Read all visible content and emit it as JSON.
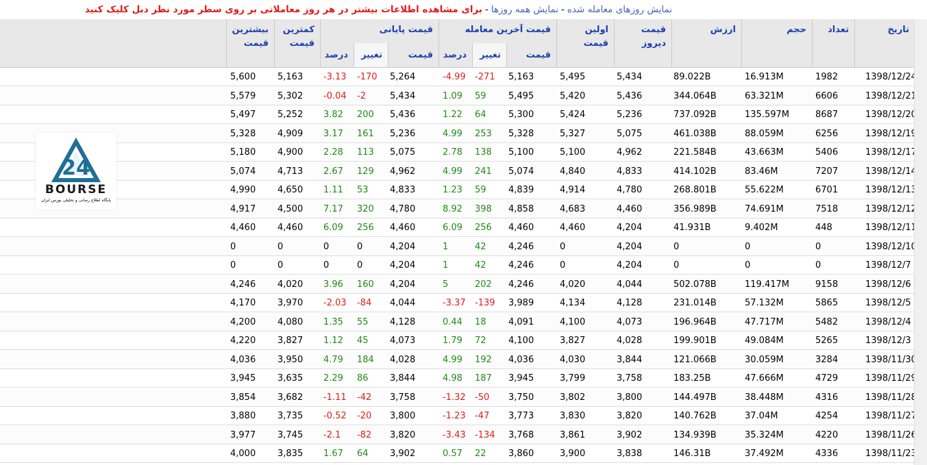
{
  "toolbar": {
    "traded_days": "نمایش روزهای معامله شده",
    "all_days": "نمایش همه روزها",
    "sep1": "-",
    "sep2": "-",
    "hint": "برای مشاهده اطلاعات بیشتر در هر روز معاملاتی بر روی سطر مورد نظر دبل کلیک کنید"
  },
  "logo": {
    "brand": "BOURSE",
    "tagline": "پایگاه اطلاع رسانی و تحلیلی بورس ایران"
  },
  "headers": {
    "date": "تاریخ",
    "count": "تعداد",
    "volume": "حجم",
    "value": "ارزش",
    "yesterday_price": "قیمت دیروز",
    "first_price": "اولین قیمت",
    "last_trade": "قیمت آخرین معامله",
    "closing": "قیمت پایانی",
    "low": "کمترین قیمت",
    "high": "بیشترین قیمت",
    "sub_price": "قیمت",
    "sub_change": "تغییر",
    "sub_percent": "درصد"
  },
  "colors": {
    "header_text": "#1c3fae",
    "positive": "#208a16",
    "negative": "#e01b1b",
    "hint": "#e01b1b",
    "link": "#4a63b8"
  },
  "rows": [
    {
      "date": "1398/12/24",
      "count": "1982",
      "volume": "16.913M",
      "value": "89.022B",
      "yesterday": "5,434",
      "first": "5,495",
      "last_price": "5,163",
      "last_change": "-271",
      "last_pct": "-4.99",
      "close_price": "5,264",
      "close_change": "-170",
      "close_pct": "-3.13",
      "low": "5,163",
      "high": "5,600"
    },
    {
      "date": "1398/12/21",
      "count": "6606",
      "volume": "63.321M",
      "value": "344.064B",
      "yesterday": "5,436",
      "first": "5,420",
      "last_price": "5,495",
      "last_change": "59",
      "last_pct": "1.09",
      "close_price": "5,434",
      "close_change": "-2",
      "close_pct": "-0.04",
      "low": "5,302",
      "high": "5,579"
    },
    {
      "date": "1398/12/20",
      "count": "8687",
      "volume": "135.597M",
      "value": "737.092B",
      "yesterday": "5,236",
      "first": "5,424",
      "last_price": "5,300",
      "last_change": "64",
      "last_pct": "1.22",
      "close_price": "5,436",
      "close_change": "200",
      "close_pct": "3.82",
      "low": "5,252",
      "high": "5,497"
    },
    {
      "date": "1398/12/19",
      "count": "6256",
      "volume": "88.059M",
      "value": "461.038B",
      "yesterday": "5,075",
      "first": "5,327",
      "last_price": "5,328",
      "last_change": "253",
      "last_pct": "4.99",
      "close_price": "5,236",
      "close_change": "161",
      "close_pct": "3.17",
      "low": "4,909",
      "high": "5,328"
    },
    {
      "date": "1398/12/17",
      "count": "5406",
      "volume": "43.663M",
      "value": "221.584B",
      "yesterday": "4,962",
      "first": "5,100",
      "last_price": "5,100",
      "last_change": "138",
      "last_pct": "2.78",
      "close_price": "5,075",
      "close_change": "113",
      "close_pct": "2.28",
      "low": "4,900",
      "high": "5,180"
    },
    {
      "date": "1398/12/14",
      "count": "7207",
      "volume": "83.46M",
      "value": "414.102B",
      "yesterday": "4,833",
      "first": "4,840",
      "last_price": "5,074",
      "last_change": "241",
      "last_pct": "4.99",
      "close_price": "4,962",
      "close_change": "129",
      "close_pct": "2.67",
      "low": "4,713",
      "high": "5,074"
    },
    {
      "date": "1398/12/13",
      "count": "6701",
      "volume": "55.622M",
      "value": "268.801B",
      "yesterday": "4,780",
      "first": "4,914",
      "last_price": "4,839",
      "last_change": "59",
      "last_pct": "1.23",
      "close_price": "4,833",
      "close_change": "53",
      "close_pct": "1.11",
      "low": "4,650",
      "high": "4,990"
    },
    {
      "date": "1398/12/12",
      "count": "7518",
      "volume": "74.691M",
      "value": "356.989B",
      "yesterday": "4,460",
      "first": "4,683",
      "last_price": "4,858",
      "last_change": "398",
      "last_pct": "8.92",
      "close_price": "4,780",
      "close_change": "320",
      "close_pct": "7.17",
      "low": "4,500",
      "high": "4,917"
    },
    {
      "date": "1398/12/11",
      "count": "448",
      "volume": "9.402M",
      "value": "41.931B",
      "yesterday": "4,204",
      "first": "4,460",
      "last_price": "4,460",
      "last_change": "256",
      "last_pct": "6.09",
      "close_price": "4,460",
      "close_change": "256",
      "close_pct": "6.09",
      "low": "4,460",
      "high": "4,460"
    },
    {
      "date": "1398/12/10",
      "count": "0",
      "volume": "0",
      "value": "0",
      "yesterday": "4,204",
      "first": "0",
      "last_price": "4,246",
      "last_change": "42",
      "last_pct": "1",
      "close_price": "4,204",
      "close_change": "0",
      "close_pct": "0",
      "low": "0",
      "high": "0"
    },
    {
      "date": "1398/12/7",
      "count": "0",
      "volume": "0",
      "value": "0",
      "yesterday": "4,204",
      "first": "0",
      "last_price": "4,246",
      "last_change": "42",
      "last_pct": "1",
      "close_price": "4,204",
      "close_change": "0",
      "close_pct": "0",
      "low": "0",
      "high": "0"
    },
    {
      "date": "1398/12/6",
      "count": "9158",
      "volume": "119.417M",
      "value": "502.078B",
      "yesterday": "4,044",
      "first": "4,020",
      "last_price": "4,246",
      "last_change": "202",
      "last_pct": "5",
      "close_price": "4,204",
      "close_change": "160",
      "close_pct": "3.96",
      "low": "4,020",
      "high": "4,246"
    },
    {
      "date": "1398/12/5",
      "count": "5865",
      "volume": "57.132M",
      "value": "231.014B",
      "yesterday": "4,128",
      "first": "4,134",
      "last_price": "3,989",
      "last_change": "-139",
      "last_pct": "-3.37",
      "close_price": "4,044",
      "close_change": "-84",
      "close_pct": "-2.03",
      "low": "3,970",
      "high": "4,170"
    },
    {
      "date": "1398/12/4",
      "count": "5482",
      "volume": "47.717M",
      "value": "196.964B",
      "yesterday": "4,073",
      "first": "4,100",
      "last_price": "4,091",
      "last_change": "18",
      "last_pct": "0.44",
      "close_price": "4,128",
      "close_change": "55",
      "close_pct": "1.35",
      "low": "4,080",
      "high": "4,200"
    },
    {
      "date": "1398/12/3",
      "count": "5265",
      "volume": "49.084M",
      "value": "199.901B",
      "yesterday": "4,028",
      "first": "3,827",
      "last_price": "4,100",
      "last_change": "72",
      "last_pct": "1.79",
      "close_price": "4,073",
      "close_change": "45",
      "close_pct": "1.12",
      "low": "3,827",
      "high": "4,220"
    },
    {
      "date": "1398/11/30",
      "count": "3284",
      "volume": "30.059M",
      "value": "121.066B",
      "yesterday": "3,844",
      "first": "4,030",
      "last_price": "4,036",
      "last_change": "192",
      "last_pct": "4.99",
      "close_price": "4,028",
      "close_change": "184",
      "close_pct": "4.79",
      "low": "3,950",
      "high": "4,036"
    },
    {
      "date": "1398/11/29",
      "count": "4729",
      "volume": "47.666M",
      "value": "183.25B",
      "yesterday": "3,758",
      "first": "3,799",
      "last_price": "3,945",
      "last_change": "187",
      "last_pct": "4.98",
      "close_price": "3,844",
      "close_change": "86",
      "close_pct": "2.29",
      "low": "3,635",
      "high": "3,945"
    },
    {
      "date": "1398/11/28",
      "count": "4316",
      "volume": "38.448M",
      "value": "144.497B",
      "yesterday": "3,800",
      "first": "3,802",
      "last_price": "3,750",
      "last_change": "-50",
      "last_pct": "-1.32",
      "close_price": "3,758",
      "close_change": "-42",
      "close_pct": "-1.11",
      "low": "3,682",
      "high": "3,854"
    },
    {
      "date": "1398/11/27",
      "count": "4254",
      "volume": "37.04M",
      "value": "140.762B",
      "yesterday": "3,820",
      "first": "3,830",
      "last_price": "3,773",
      "last_change": "-47",
      "last_pct": "-1.23",
      "close_price": "3,800",
      "close_change": "-20",
      "close_pct": "-0.52",
      "low": "3,735",
      "high": "3,880"
    },
    {
      "date": "1398/11/26",
      "count": "4220",
      "volume": "35.324M",
      "value": "134.939B",
      "yesterday": "3,902",
      "first": "3,861",
      "last_price": "3,768",
      "last_change": "-134",
      "last_pct": "-3.43",
      "close_price": "3,820",
      "close_change": "-82",
      "close_pct": "-2.1",
      "low": "3,745",
      "high": "3,977"
    },
    {
      "date": "1398/11/23",
      "count": "4336",
      "volume": "37.492M",
      "value": "146.31B",
      "yesterday": "3,838",
      "first": "3,900",
      "last_price": "3,860",
      "last_change": "22",
      "last_pct": "0.57",
      "close_price": "3,902",
      "close_change": "64",
      "close_pct": "1.67",
      "low": "3,835",
      "high": "4,000"
    }
  ]
}
